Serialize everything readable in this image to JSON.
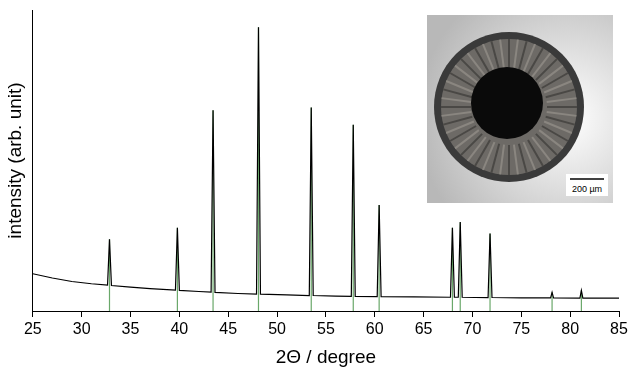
{
  "chart_data": {
    "type": "line",
    "x_label": "2Θ / degree",
    "y_label": "intensity (arb. unit)",
    "series": [
      {
        "type": "line",
        "color": "#000000",
        "x": [
          25,
          27,
          29,
          31,
          32.65,
          32.85,
          33.05,
          35,
          37,
          39.6,
          39.8,
          40.0,
          42,
          43.25,
          43.45,
          43.65,
          46,
          47.9,
          48.1,
          48.3,
          51,
          53.3,
          53.5,
          53.7,
          56,
          57.6,
          57.8,
          58.0,
          60.25,
          60.45,
          60.65,
          64,
          67.75,
          67.95,
          68.15,
          68.55,
          68.75,
          68.95,
          71.6,
          71.8,
          72.0,
          75,
          78.0,
          78.15,
          78.3,
          81.0,
          81.15,
          81.3,
          85
        ],
        "values": [
          13,
          11.5,
          10.3,
          9.5,
          9,
          25,
          8.9,
          8.3,
          7.8,
          7.3,
          29,
          7.2,
          6.8,
          6.6,
          70,
          6.5,
          6.1,
          5.9,
          99,
          5.9,
          5.6,
          5.4,
          71,
          5.4,
          5.2,
          5.1,
          65,
          5.1,
          5.0,
          37,
          5.0,
          4.9,
          4.8,
          29,
          4.8,
          4.8,
          31,
          4.8,
          4.7,
          27,
          4.7,
          4.6,
          4.6,
          6.5,
          4.6,
          4.5,
          7.2,
          4.5,
          4.5
        ]
      },
      {
        "type": "bar",
        "color": "#6aa86a",
        "x": [
          32.85,
          39.8,
          43.45,
          48.1,
          53.5,
          57.8,
          60.45,
          67.95,
          68.75,
          71.8,
          78.15,
          81.15
        ],
        "values": [
          25,
          29,
          70,
          99,
          71,
          65,
          37,
          29,
          31,
          27,
          6.5,
          7.2
        ]
      }
    ],
    "xlim": [
      25,
      85
    ],
    "xticks": [
      25,
      30,
      35,
      40,
      45,
      50,
      55,
      60,
      65,
      70,
      75,
      80,
      85
    ],
    "ylim": [
      0,
      105
    ],
    "yticks": [],
    "tick_labels": "x",
    "grid": false,
    "annotations": [
      "200 µm"
    ]
  }
}
